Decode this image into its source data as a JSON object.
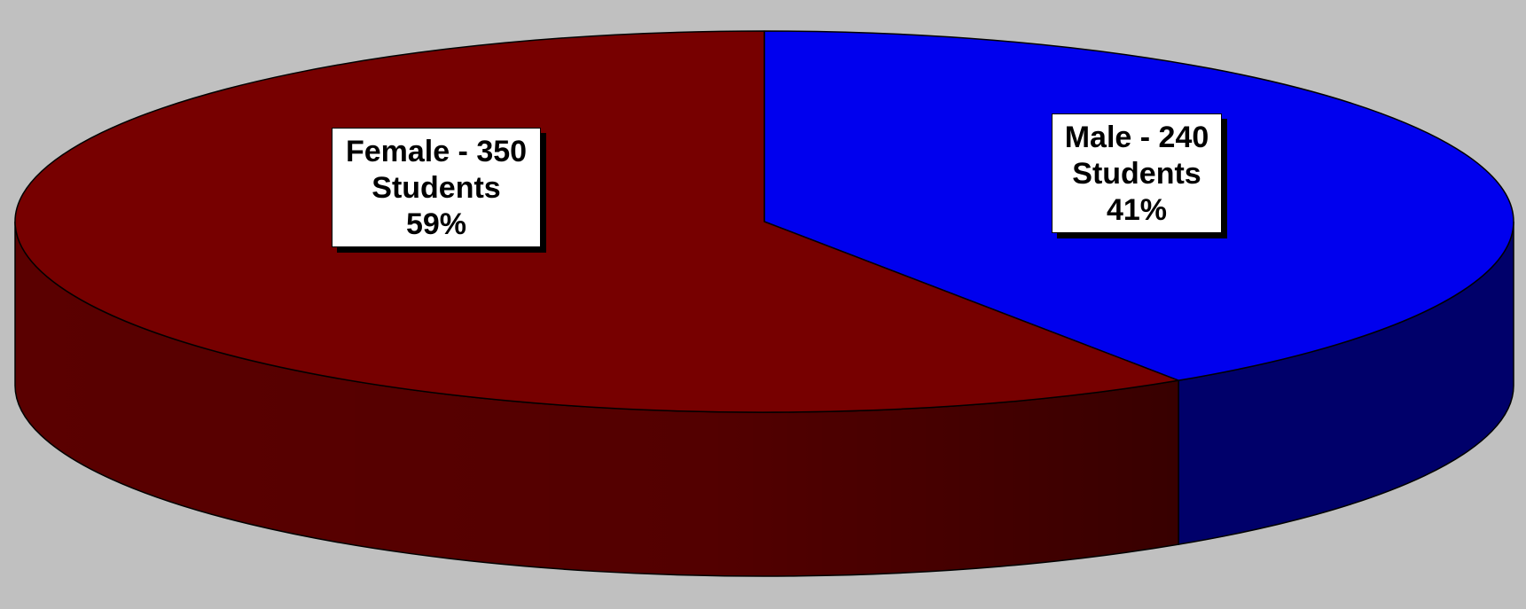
{
  "chart_data": {
    "type": "pie",
    "style": "3d",
    "categories": [
      "Female",
      "Male"
    ],
    "values": [
      350,
      240
    ],
    "colors": [
      "#770000",
      "#0000ee"
    ],
    "side_colors": [
      "#5a0000",
      "#00006a"
    ],
    "labels": [
      {
        "line1": "Female - 350",
        "line2": "Students",
        "line3": "59%"
      },
      {
        "line1": "Male - 240",
        "line2": "Students",
        "line3": "41%"
      }
    ],
    "legend": "none"
  }
}
